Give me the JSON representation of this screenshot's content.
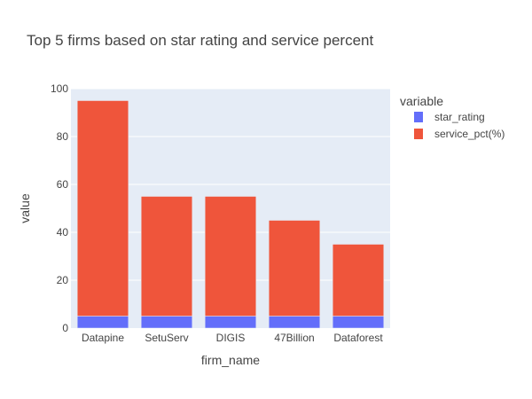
{
  "chart_data": {
    "type": "bar",
    "barmode": "stack",
    "title": "Top 5 firms based on star rating and service percent",
    "xlabel": "firm_name",
    "ylabel": "value",
    "ylim": [
      0,
      100
    ],
    "yticks": [
      0,
      20,
      40,
      60,
      80,
      100
    ],
    "categories": [
      "Datapine",
      "SetuServ",
      "DIGIS",
      "47Billion",
      "Dataforest"
    ],
    "series": [
      {
        "name": "star_rating",
        "color": "#636EFA",
        "values": [
          5,
          5,
          5,
          5,
          5
        ]
      },
      {
        "name": "service_pct(%)",
        "color": "#EF553B",
        "values": [
          90,
          50,
          50,
          40,
          30
        ]
      }
    ],
    "legend": {
      "title": "variable",
      "placement": "top-right"
    },
    "plot_bg": "#E5ECF6",
    "grid_color": "#FFFFFF"
  }
}
